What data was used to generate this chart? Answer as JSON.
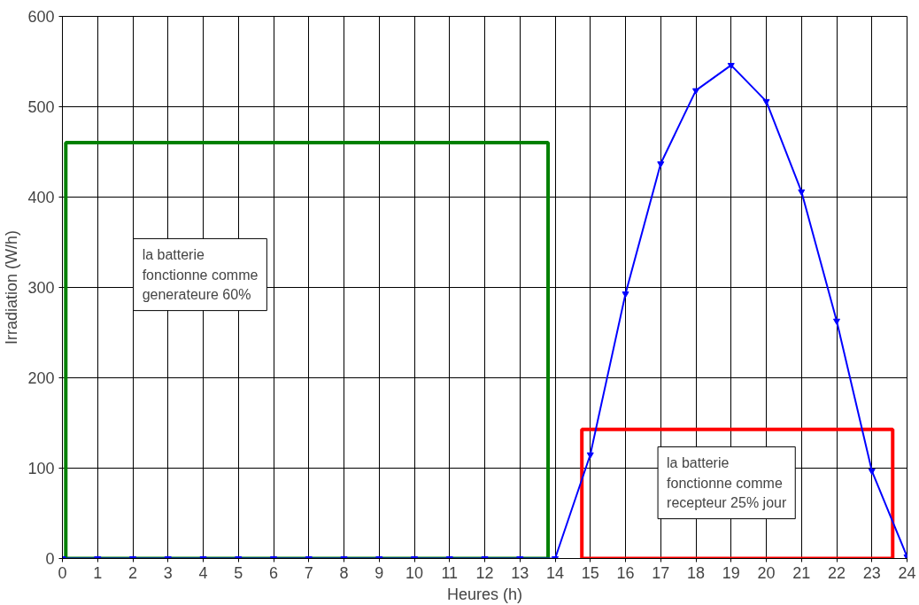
{
  "chart_data": {
    "type": "line",
    "xlabel": "Heures (h)",
    "ylabel": "Irradiation (W/h)",
    "x": [
      0,
      1,
      2,
      3,
      4,
      5,
      6,
      7,
      8,
      9,
      10,
      11,
      12,
      13,
      14,
      15,
      16,
      17,
      18,
      19,
      20,
      21,
      22,
      23,
      24
    ],
    "series": [
      {
        "color": "#0000ff",
        "values": [
          0,
          0,
          0,
          0,
          0,
          0,
          0,
          0,
          0,
          0,
          0,
          0,
          0,
          0,
          0,
          115,
          293,
          437,
          518,
          546,
          506,
          406,
          263,
          97,
          2
        ]
      }
    ],
    "xlim": [
      0,
      24
    ],
    "xticks": [
      0,
      1,
      2,
      3,
      4,
      5,
      6,
      7,
      8,
      9,
      10,
      11,
      12,
      13,
      14,
      15,
      16,
      17,
      18,
      19,
      20,
      21,
      22,
      23,
      24
    ],
    "ylim": [
      0,
      600
    ],
    "yticks": [
      0,
      100,
      200,
      300,
      400,
      500,
      600
    ],
    "annotations": [
      "la batterie\nfonctionne comme\ngenerateure 60%",
      "la batterie\nfonctionne comme\nrecepteur 25% jour"
    ],
    "grid": true,
    "marker": "triangle",
    "line_style": "solid"
  }
}
